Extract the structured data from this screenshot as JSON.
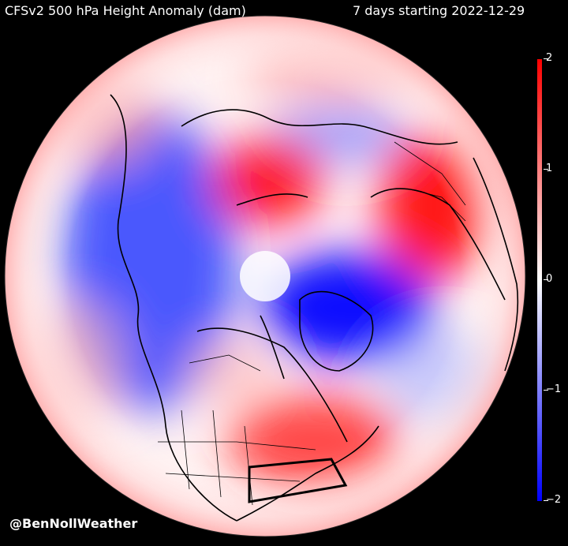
{
  "title": "CFSv2 500 hPa Height Anomaly (dam)",
  "period": "7 days starting 2022-12-29",
  "credit": "@BenNollWeather",
  "colorbar": {
    "ticks": [
      "2",
      "1",
      "0",
      "−1",
      "−2"
    ],
    "min": -2,
    "max": 2,
    "colors": {
      "high": "#ff0000",
      "mid": "#ffffff",
      "low": "#0000ff"
    }
  },
  "map": {
    "projection": "north-polar-stereographic",
    "highlighted_region": "northeastern-united-states-box"
  }
}
